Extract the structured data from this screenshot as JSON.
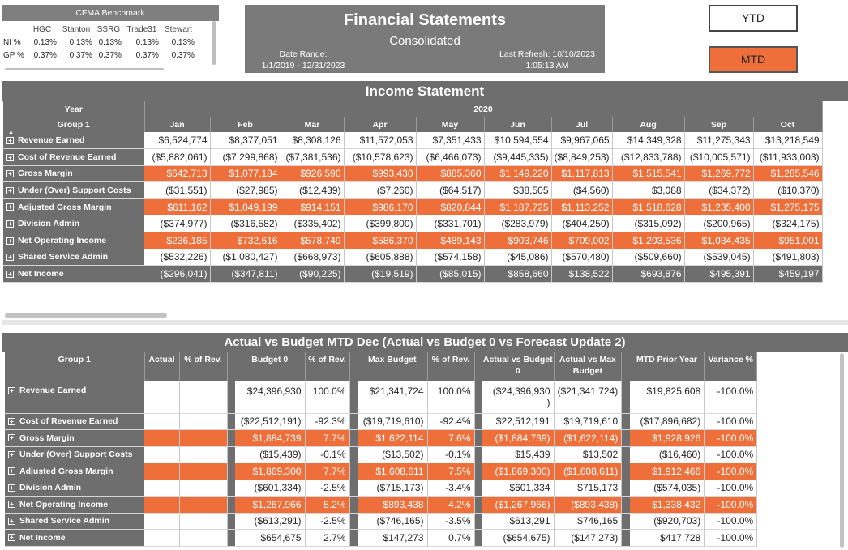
{
  "benchmark": {
    "title": "CFMA Benchmark",
    "columns": [
      "",
      "HGC",
      "Stanton",
      "SSRG",
      "Trade31",
      "Stewart"
    ],
    "rows": [
      {
        "label": "NI %",
        "values": [
          "0.13%",
          "0.13%",
          "0.13%",
          "0.13%",
          "0.13%"
        ]
      },
      {
        "label": "GP %",
        "values": [
          "0.37%",
          "0.37%",
          "0.37%",
          "0.37%",
          "0.37%"
        ]
      }
    ]
  },
  "header": {
    "title": "Financial Statements",
    "subtitle": "Consolidated",
    "date_range_label": "Date Range:",
    "date_range_value": "1/1/2019 - 12/31/2023",
    "last_refresh_label": "Last Refresh: 10/10/2023",
    "last_refresh_time": "1:05:13 AM"
  },
  "buttons": {
    "ytd": "YTD",
    "mtd": "MTD"
  },
  "income_statement": {
    "title": "Income Statement",
    "year_label": "Year",
    "year_value": "2020",
    "group_label": "Group 1",
    "sort_icon": "▲",
    "months": [
      "Jan",
      "Feb",
      "Mar",
      "Apr",
      "May",
      "Jun",
      "Jul",
      "Aug",
      "Sep",
      "Oct"
    ],
    "rows": [
      {
        "label": "Revenue Earned",
        "style": "normal",
        "values": [
          "$6,524,774",
          "$8,377,051",
          "$8,308,126",
          "$11,572,053",
          "$7,351,433",
          "$10,594,554",
          "$9,967,065",
          "$14,349,328",
          "$11,275,343",
          "$13,218,549"
        ]
      },
      {
        "label": "Cost of Revenue Earned",
        "style": "normal",
        "values": [
          "($5,882,061)",
          "($7,299,868)",
          "($7,381,536)",
          "($10,578,623)",
          "($6,466,073)",
          "($9,445,335)",
          "($8,849,253)",
          "($12,833,788)",
          "($10,005,571)",
          "($11,933,003)"
        ]
      },
      {
        "label": "Gross Margin",
        "style": "highlight",
        "values": [
          "$642,713",
          "$1,077,184",
          "$926,590",
          "$993,430",
          "$885,360",
          "$1,149,220",
          "$1,117,813",
          "$1,515,541",
          "$1,269,772",
          "$1,285,546"
        ]
      },
      {
        "label": "Under (Over) Support Costs",
        "style": "normal",
        "values": [
          "($31,551)",
          "($27,985)",
          "($12,439)",
          "($7,260)",
          "($64,517)",
          "$38,505",
          "($4,560)",
          "$3,088",
          "($34,372)",
          "($10,370)"
        ]
      },
      {
        "label": "Adjusted Gross Margin",
        "style": "highlight",
        "values": [
          "$611,162",
          "$1,049,199",
          "$914,151",
          "$986,170",
          "$820,844",
          "$1,187,725",
          "$1,113,252",
          "$1,518,628",
          "$1,235,400",
          "$1,275,175"
        ]
      },
      {
        "label": "Division Admin",
        "style": "normal",
        "values": [
          "($374,977)",
          "($316,582)",
          "($335,402)",
          "($399,800)",
          "($331,701)",
          "($283,979)",
          "($404,250)",
          "($315,092)",
          "($200,965)",
          "($324,175)"
        ]
      },
      {
        "label": "Net Operating Income",
        "style": "highlight",
        "values": [
          "$236,185",
          "$732,616",
          "$578,749",
          "$586,370",
          "$489,143",
          "$903,746",
          "$709,002",
          "$1,203,536",
          "$1,034,435",
          "$951,001"
        ]
      },
      {
        "label": "Shared Service Admin",
        "style": "normal",
        "values": [
          "($532,226)",
          "($1,080,427)",
          "($668,973)",
          "($605,888)",
          "($574,158)",
          "($45,086)",
          "($570,480)",
          "($509,660)",
          "($539,045)",
          "($491,803)"
        ]
      },
      {
        "label": "Net Income",
        "style": "total",
        "values": [
          "($296,041)",
          "($347,811)",
          "($90,225)",
          "($19,519)",
          "($85,015)",
          "$858,660",
          "$138,522",
          "$693,876",
          "$495,391",
          "$459,197"
        ]
      }
    ]
  },
  "actual_vs_budget": {
    "title": "Actual vs Budget MTD Dec (Actual vs Budget 0 vs Forecast Update 2)",
    "columns": {
      "group": "Group 1",
      "actual": "Actual",
      "pct1": "% of Rev.",
      "budget0": "Budget 0",
      "pct2": "% of Rev.",
      "max_budget": "Max Budget",
      "pct3": "% of Rev.",
      "avb0": "Actual vs Budget 0",
      "avmax": "Actual vs Max Budget",
      "prior": "MTD Prior Year",
      "variance": "Variance %"
    },
    "rows": [
      {
        "label": "Revenue Earned",
        "style": "tall",
        "actual": "",
        "pct1": "",
        "budget0": "$24,396,930",
        "pct2": "100.0%",
        "max_budget": "$21,341,724",
        "pct3": "100.0%",
        "avb0": "($24,396,930\n)",
        "avmax": "($21,341,724)",
        "prior": "$19,825,608",
        "variance": "-100.0%"
      },
      {
        "label": "Cost of Revenue Earned",
        "style": "normal",
        "actual": "",
        "pct1": "",
        "budget0": "($22,512,191)",
        "pct2": "-92.3%",
        "max_budget": "($19,719,610)",
        "pct3": "-92.4%",
        "avb0": "$22,512,191",
        "avmax": "$19,719,610",
        "prior": "($17,896,682)",
        "variance": "-100.0%"
      },
      {
        "label": "Gross Margin",
        "style": "highlight",
        "actual": "",
        "pct1": "",
        "budget0": "$1,884,739",
        "pct2": "7.7%",
        "max_budget": "$1,622,114",
        "pct3": "7.6%",
        "avb0": "($1,884,739)",
        "avmax": "($1,622,114)",
        "prior": "$1,928,926",
        "variance": "-100.0%"
      },
      {
        "label": "Under (Over) Support Costs",
        "style": "normal",
        "actual": "",
        "pct1": "",
        "budget0": "($15,439)",
        "pct2": "-0.1%",
        "max_budget": "($13,502)",
        "pct3": "-0.1%",
        "avb0": "$15,439",
        "avmax": "$13,502",
        "prior": "($16,460)",
        "variance": "-100.0%"
      },
      {
        "label": "Adjusted Gross Margin",
        "style": "highlight",
        "actual": "",
        "pct1": "",
        "budget0": "$1,869,300",
        "pct2": "7.7%",
        "max_budget": "$1,608,611",
        "pct3": "7.5%",
        "avb0": "($1,869,300)",
        "avmax": "($1,608,611)",
        "prior": "$1,912,466",
        "variance": "-100.0%"
      },
      {
        "label": "Division Admin",
        "style": "normal",
        "actual": "",
        "pct1": "",
        "budget0": "($601,334)",
        "pct2": "-2.5%",
        "max_budget": "($715,173)",
        "pct3": "-3.4%",
        "avb0": "$601,334",
        "avmax": "$715,173",
        "prior": "($574,035)",
        "variance": "-100.0%"
      },
      {
        "label": "Net Operating Income",
        "style": "highlight",
        "actual": "",
        "pct1": "",
        "budget0": "$1,267,966",
        "pct2": "5.2%",
        "max_budget": "$893,438",
        "pct3": "4.2%",
        "avb0": "($1,267,966)",
        "avmax": "($893,438)",
        "prior": "$1,338,432",
        "variance": "-100.0%"
      },
      {
        "label": "Shared Service Admin",
        "style": "normal",
        "actual": "",
        "pct1": "",
        "budget0": "($613,291)",
        "pct2": "-2.5%",
        "max_budget": "($746,165)",
        "pct3": "-3.5%",
        "avb0": "$613,291",
        "avmax": "$746,165",
        "prior": "($920,703)",
        "variance": "-100.0%"
      },
      {
        "label": "Net Income",
        "style": "normal",
        "actual": "",
        "pct1": "",
        "budget0": "$654,675",
        "pct2": "2.7%",
        "max_budget": "$147,273",
        "pct3": "0.7%",
        "avb0": "($654,675)",
        "avmax": "($147,273)",
        "prior": "$417,728",
        "variance": "-100.0%"
      }
    ]
  },
  "colors": {
    "header_gray": "#6e6e6e",
    "highlight_orange": "#ee6f3a",
    "white": "#ffffff"
  },
  "icons": {
    "expand": "expand-plus-icon",
    "sort": "sort-up-icon"
  }
}
